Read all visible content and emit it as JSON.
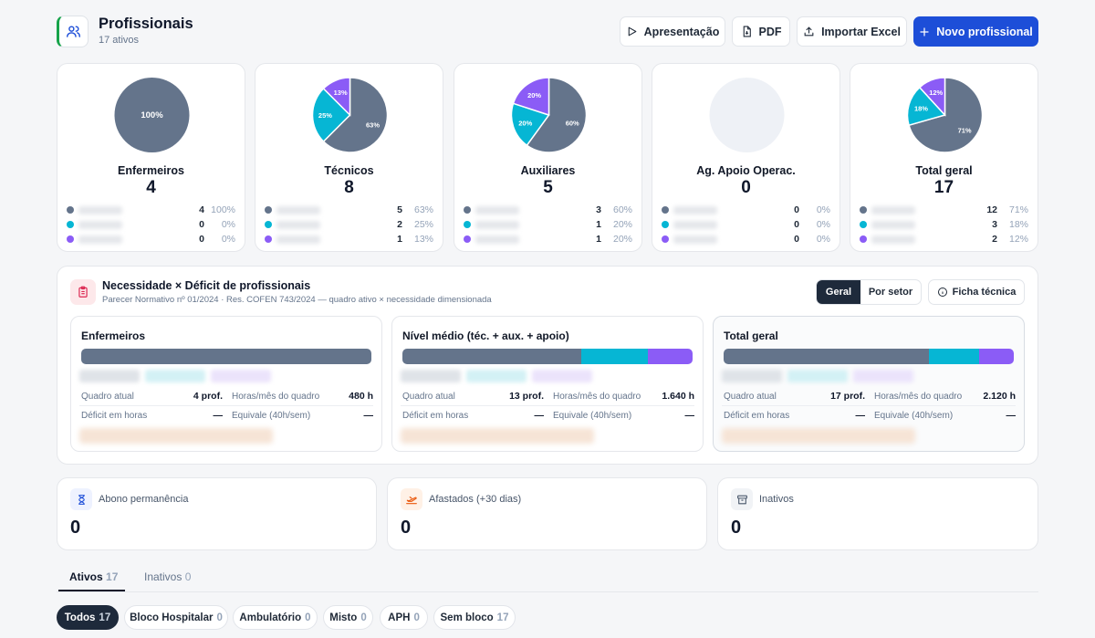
{
  "header": {
    "title": "Profissionais",
    "subtitle": "17 ativos"
  },
  "toolbar": {
    "presentation_label": "Apresentação",
    "pdf_label": "PDF",
    "import_label": "Importar Excel",
    "new_label": "Novo profissional"
  },
  "colors": {
    "slate": "#64748b",
    "cyan": "#06b6d4",
    "purple": "#8b5cf6",
    "primary": "#1d4ed8",
    "empty": "#eef1f6"
  },
  "pies": [
    {
      "title": "Enfermeiros",
      "total": "4",
      "slices": [
        1.0,
        0,
        0
      ],
      "labels": [
        "100%",
        "",
        ""
      ],
      "rows": [
        {
          "n": "4",
          "p": "100%"
        },
        {
          "n": "0",
          "p": "0%"
        },
        {
          "n": "0",
          "p": "0%"
        }
      ]
    },
    {
      "title": "Técnicos",
      "total": "8",
      "slices": [
        0.625,
        0.25,
        0.125
      ],
      "labels": [
        "63%",
        "25%",
        "13%"
      ],
      "rows": [
        {
          "n": "5",
          "p": "63%"
        },
        {
          "n": "2",
          "p": "25%"
        },
        {
          "n": "1",
          "p": "13%"
        }
      ]
    },
    {
      "title": "Auxiliares",
      "total": "5",
      "slices": [
        0.6,
        0.2,
        0.2
      ],
      "labels": [
        "60%",
        "20%",
        "20%"
      ],
      "rows": [
        {
          "n": "3",
          "p": "60%"
        },
        {
          "n": "1",
          "p": "20%"
        },
        {
          "n": "1",
          "p": "20%"
        }
      ]
    },
    {
      "title": "Ag. Apoio Operac.",
      "total": "0",
      "slices": [
        0,
        0,
        0
      ],
      "labels": [
        "",
        "",
        ""
      ],
      "rows": [
        {
          "n": "0",
          "p": "0%"
        },
        {
          "n": "0",
          "p": "0%"
        },
        {
          "n": "0",
          "p": "0%"
        }
      ]
    },
    {
      "title": "Total geral",
      "total": "17",
      "slices": [
        0.706,
        0.176,
        0.118
      ],
      "labels": [
        "71%",
        "18%",
        "12%"
      ],
      "rows": [
        {
          "n": "12",
          "p": "71%"
        },
        {
          "n": "3",
          "p": "18%"
        },
        {
          "n": "2",
          "p": "12%"
        }
      ]
    }
  ],
  "deficit": {
    "title": "Necessidade × Déficit de profissionais",
    "subtitle": "Parecer Normativo nº 01/2024 · Res. COFEN 743/2024 — quadro ativo × necessidade dimensionada",
    "toggle": {
      "geral": "Geral",
      "setor": "Por setor"
    },
    "ficha_label": "Ficha técnica",
    "cards": [
      {
        "title": "Enfermeiros",
        "bar": [
          1.0,
          0,
          0
        ],
        "quadro_label": "Quadro atual",
        "quadro": "4 prof.",
        "horas_label": "Horas/mês do quadro",
        "horas": "480 h",
        "deficit_label": "Déficit em horas",
        "deficit": "—",
        "equiv_label": "Equivale (40h/sem)",
        "equiv": "—"
      },
      {
        "title": "Nível médio (téc. + aux. + apoio)",
        "bar": [
          0.615,
          0.231,
          0.154
        ],
        "quadro_label": "Quadro atual",
        "quadro": "13 prof.",
        "horas_label": "Horas/mês do quadro",
        "horas": "1.640 h",
        "deficit_label": "Déficit em horas",
        "deficit": "—",
        "equiv_label": "Equivale (40h/sem)",
        "equiv": "—"
      },
      {
        "title": "Total geral",
        "bar": [
          0.706,
          0.176,
          0.118
        ],
        "quadro_label": "Quadro atual",
        "quadro": "17 prof.",
        "horas_label": "Horas/mês do quadro",
        "horas": "2.120 h",
        "deficit_label": "Déficit em horas",
        "deficit": "—",
        "equiv_label": "Equivale (40h/sem)",
        "equiv": "—"
      }
    ]
  },
  "stats": [
    {
      "label": "Abono permanência",
      "value": "0"
    },
    {
      "label": "Afastados (+30 dias)",
      "value": "0"
    },
    {
      "label": "Inativos",
      "value": "0"
    }
  ],
  "tabs": [
    {
      "label": "Ativos",
      "count": "17"
    },
    {
      "label": "Inativos",
      "count": "0"
    }
  ],
  "chips": [
    {
      "label": "Todos",
      "count": "17"
    },
    {
      "label": "Bloco Hospitalar",
      "count": "0"
    },
    {
      "label": "Ambulatório",
      "count": "0"
    },
    {
      "label": "Misto",
      "count": "0"
    },
    {
      "label": "APH",
      "count": "0"
    },
    {
      "label": "Sem bloco",
      "count": "17"
    }
  ]
}
